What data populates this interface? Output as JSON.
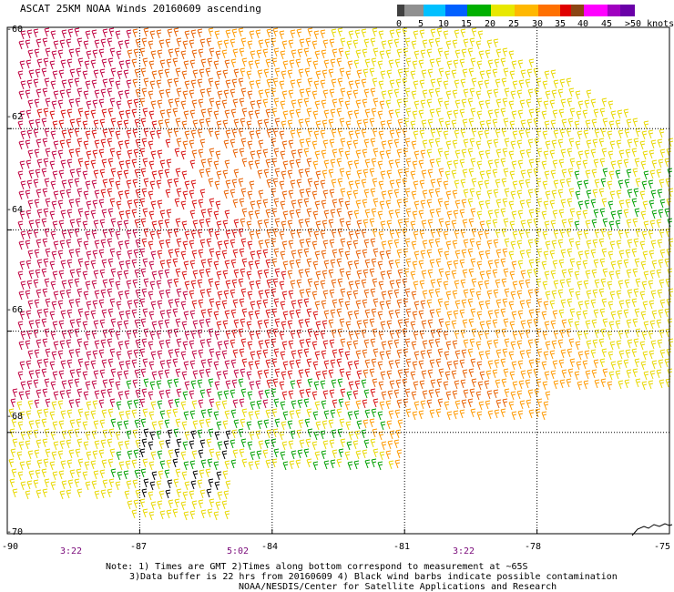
{
  "title": "ASCAT 25KM NOAA Winds 20160609 ascending",
  "colorbar": {
    "labels": [
      "0",
      "5",
      "10",
      "15",
      "20",
      "25",
      "30",
      "35",
      "40",
      "45",
      ">50 knots"
    ],
    "colors": [
      "#404040",
      "#909090",
      "#00c0ff",
      "#0060ff",
      "#00b000",
      "#e8e800",
      "#ffb800",
      "#ff7000",
      "#e00000",
      "#8b4513",
      "#ff00ff",
      "#a000c0",
      "#6a00a8"
    ]
  },
  "axes": {
    "lat_labels": [
      "-60",
      "-62",
      "-64",
      "-66",
      "-68",
      "-70"
    ],
    "lon_labels": [
      "-90",
      "-87",
      "-84",
      "-81",
      "-78",
      "-75"
    ]
  },
  "times": [
    "3:22",
    "5:02",
    "3:22"
  ],
  "notes": {
    "line1": "Note: 1) Times are GMT 2)Times along bottom correspond to measurement at ~65S",
    "line2": "3)Data buffer is 22 hrs from 20160609 4) Black wind barbs indicate possible contamination",
    "line3": "NOAA/NESDIS/Center for Satellite Applications and Research"
  },
  "map": {
    "lat_range": [
      -70,
      -60
    ],
    "lon_range": [
      -90,
      -75
    ],
    "grid": true,
    "barb_colors": {
      "black": "#000000",
      "green": "#00a000",
      "yellow": "#e8d800",
      "orange": "#ff9a00",
      "darkorange": "#e86000",
      "red": "#d81010",
      "crimson": "#c00040"
    }
  }
}
